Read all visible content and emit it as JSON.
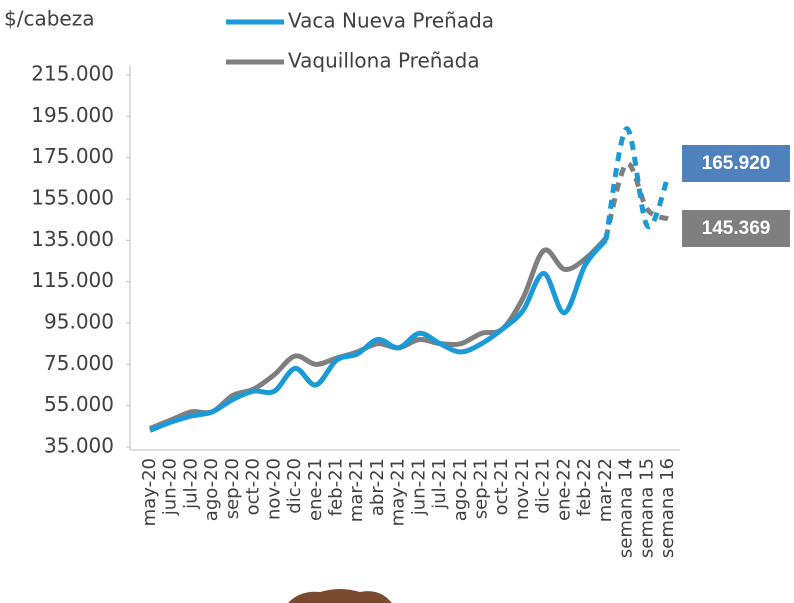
{
  "chart_data": {
    "type": "line",
    "y_axis_label": "$/cabeza",
    "categories": [
      "may-20",
      "jun-20",
      "jul-20",
      "ago-20",
      "sep-20",
      "oct-20",
      "nov-20",
      "dic-20",
      "ene-21",
      "feb-21",
      "mar-21",
      "abr-21",
      "may-21",
      "jun-21",
      "jul-21",
      "ago-21",
      "sep-21",
      "oct-21",
      "nov-21",
      "dic-21",
      "ene-22",
      "feb-22",
      "mar-22",
      "semana 14",
      "semana 15",
      "semana 16"
    ],
    "series": [
      {
        "name": "Vaca Nueva Preñada",
        "color": "#1a9ad6",
        "values": [
          43000,
          47000,
          50000,
          52000,
          58000,
          62000,
          62000,
          73000,
          65000,
          77000,
          80000,
          87000,
          83000,
          90000,
          85000,
          81000,
          85000,
          92000,
          101000,
          119000,
          100000,
          123000,
          135000,
          189000,
          142000,
          165920
        ],
        "value_labels": [
          null,
          null,
          null,
          null,
          null,
          null,
          null,
          null,
          null,
          null,
          null,
          null,
          null,
          null,
          null,
          null,
          null,
          null,
          null,
          null,
          null,
          null,
          null,
          null,
          null,
          "165.920"
        ],
        "label_color": "#4f81bd"
      },
      {
        "name": "Vaquillona Preñada",
        "color": "#7f7f7f",
        "values": [
          44000,
          48000,
          52000,
          52000,
          60000,
          63000,
          70000,
          79000,
          75000,
          78000,
          81000,
          85000,
          83000,
          87000,
          85000,
          85000,
          90000,
          92000,
          107000,
          130000,
          121000,
          126000,
          136000,
          172000,
          150000,
          145369
        ],
        "value_labels": [
          null,
          null,
          null,
          null,
          null,
          null,
          null,
          null,
          null,
          null,
          null,
          null,
          null,
          null,
          null,
          null,
          null,
          null,
          null,
          null,
          null,
          null,
          null,
          null,
          null,
          "145.369"
        ],
        "label_color": "#7f7f7f"
      }
    ],
    "ylim": [
      35000,
      215000
    ],
    "yticks": [
      {
        "value": 35000,
        "label": "35.000"
      },
      {
        "value": 55000,
        "label": "55.000"
      },
      {
        "value": 75000,
        "label": "75.000"
      },
      {
        "value": 95000,
        "label": "95.000"
      },
      {
        "value": 115000,
        "label": "115.000"
      },
      {
        "value": 135000,
        "label": "135.000"
      },
      {
        "value": 155000,
        "label": "155.000"
      },
      {
        "value": 175000,
        "label": "175.000"
      },
      {
        "value": 195000,
        "label": "195.000"
      },
      {
        "value": 215000,
        "label": "215.000"
      }
    ],
    "grid": false,
    "legend": "top"
  }
}
